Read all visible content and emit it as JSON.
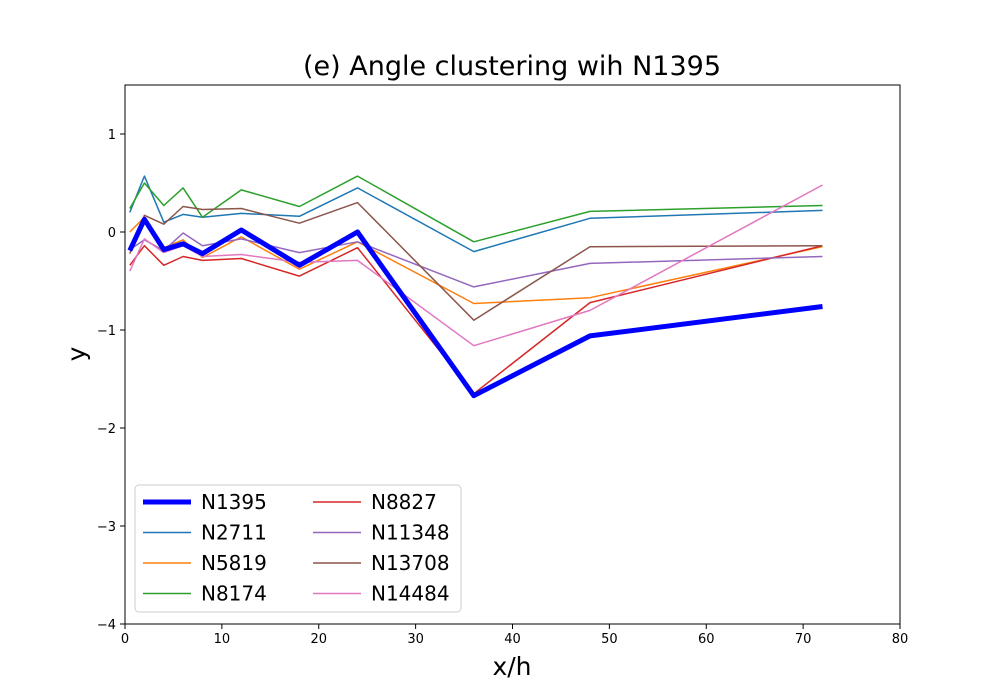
{
  "chart_data": {
    "type": "line",
    "title": "(e) Angle clustering wih N1395",
    "xlabel": "x/h",
    "ylabel": "y",
    "xlim": [
      0,
      80
    ],
    "ylim": [
      -4,
      1.5
    ],
    "xticks": [
      0,
      10,
      20,
      30,
      40,
      50,
      60,
      70,
      80
    ],
    "xtick_labels": [
      "0",
      "10",
      "20",
      "30",
      "40",
      "50",
      "60",
      "70",
      "80"
    ],
    "yticks": [
      -4,
      -3,
      -2,
      -1,
      0,
      1
    ],
    "ytick_labels": [
      "−4",
      "−3",
      "−2",
      "−1",
      "0",
      "1"
    ],
    "grid": false,
    "legend_position": "lower-left",
    "legend_columns": 2,
    "x": [
      0.5,
      2,
      4,
      6,
      8,
      12,
      18,
      24,
      36,
      48,
      72
    ],
    "series": [
      {
        "name": "N1395",
        "color": "#0000ff",
        "width": 5,
        "values": [
          -0.19,
          0.13,
          -0.18,
          -0.12,
          -0.22,
          0.02,
          -0.34,
          0.0,
          -1.67,
          -1.06,
          -0.76
        ]
      },
      {
        "name": "N2711",
        "color": "#1f77b4",
        "width": 1.5,
        "values": [
          0.2,
          0.57,
          0.1,
          0.18,
          0.15,
          0.19,
          0.16,
          0.45,
          -0.2,
          0.14,
          0.22
        ]
      },
      {
        "name": "N5819",
        "color": "#ff7f0e",
        "width": 1.5,
        "values": [
          0.0,
          0.15,
          -0.16,
          -0.08,
          -0.26,
          -0.05,
          -0.38,
          -0.1,
          -0.73,
          -0.67,
          -0.15
        ]
      },
      {
        "name": "N8174",
        "color": "#2ca02c",
        "width": 1.5,
        "values": [
          0.24,
          0.5,
          0.27,
          0.45,
          0.15,
          0.43,
          0.26,
          0.57,
          -0.1,
          0.21,
          0.27
        ]
      },
      {
        "name": "N8827",
        "color": "#d62728",
        "width": 1.5,
        "values": [
          -0.34,
          -0.14,
          -0.34,
          -0.25,
          -0.29,
          -0.27,
          -0.45,
          -0.16,
          -1.65,
          -0.72,
          -0.14
        ]
      },
      {
        "name": "N11348",
        "color": "#9467bd",
        "width": 1.5,
        "values": [
          -0.18,
          -0.08,
          -0.19,
          -0.01,
          -0.14,
          -0.07,
          -0.21,
          -0.1,
          -0.56,
          -0.32,
          -0.25
        ]
      },
      {
        "name": "N13708",
        "color": "#8c564b",
        "width": 1.5,
        "values": [
          -0.22,
          0.17,
          0.08,
          0.26,
          0.23,
          0.24,
          0.09,
          0.3,
          -0.9,
          -0.15,
          -0.14
        ]
      },
      {
        "name": "N14484",
        "color": "#e377c2",
        "width": 1.5,
        "values": [
          -0.4,
          -0.07,
          -0.21,
          -0.14,
          -0.25,
          -0.23,
          -0.31,
          -0.29,
          -1.16,
          -0.8,
          0.48
        ]
      }
    ]
  }
}
